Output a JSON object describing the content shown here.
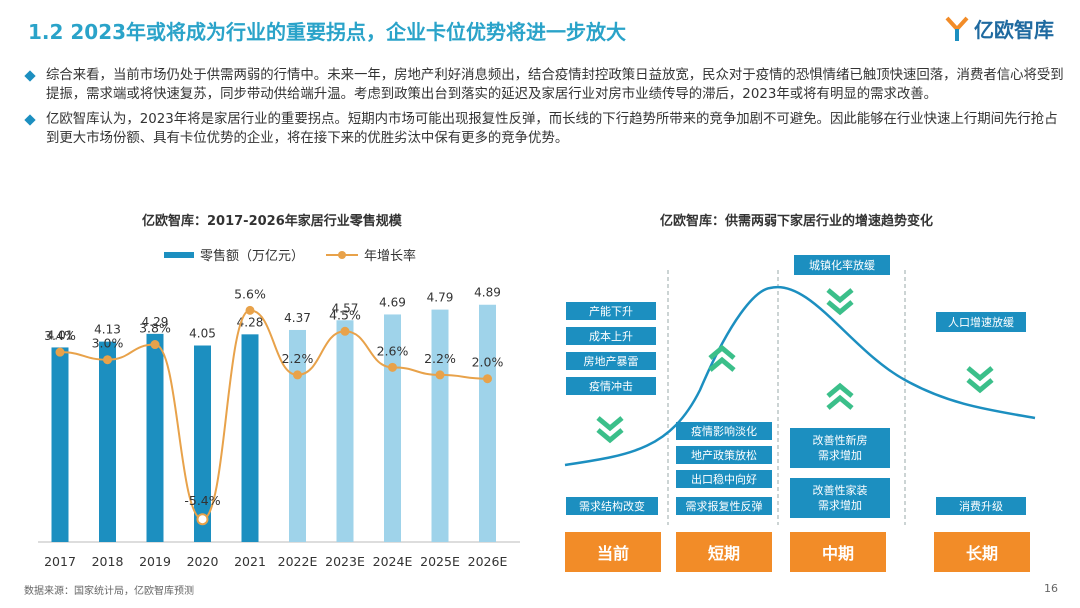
{
  "header": {
    "title": "1.2 2023年或将成为行业的重要拐点，企业卡位优势将进一步放大",
    "logo_text": "亿欧智库"
  },
  "bullets": [
    "综合来看，当前市场仍处于供需两弱的行情中。未来一年，房地产利好消息频出，结合疫情封控政策日益放宽，民众对于疫情的恐惧情绪已触顶快速回落，消费者信心将受到提振，需求端或将快速复苏，同步带动供给端升温。考虑到政策出台到落实的延迟及家居行业对房市业绩传导的滞后，2023年或将有明显的需求改善。",
    "亿欧智库认为，2023年将是家居行业的重要拐点。短期内市场可能出现报复性反弹，而长线的下行趋势所带来的竞争加剧不可避免。因此能够在行业快速上行期间先行抢占到更大市场份额、具有卡位优势的企业，将在接下来的优胜劣汰中保有更多的竞争优势。"
  ],
  "chart_data": {
    "type": "bar",
    "title": "亿欧智库：2017-2026年家居行业零售规模",
    "categories": [
      "2017",
      "2018",
      "2019",
      "2020",
      "2021",
      "2022E",
      "2023E",
      "2024E",
      "2025E",
      "2026E"
    ],
    "series": [
      {
        "name": "零售额（万亿元）",
        "type": "bar",
        "values": [
          4.01,
          4.13,
          4.29,
          4.05,
          4.28,
          4.37,
          4.57,
          4.69,
          4.79,
          4.89
        ],
        "labels": [
          "4.01",
          "4.13",
          "4.29",
          "4.05",
          "4.28",
          "4.37",
          "4.57",
          "4.69",
          "4.79",
          "4.89"
        ]
      },
      {
        "name": "年增长率",
        "type": "line",
        "values": [
          3.4,
          3.0,
          3.8,
          -5.4,
          5.6,
          2.2,
          4.5,
          2.6,
          2.2,
          2.0
        ],
        "labels": [
          "3.4%",
          "3.0%",
          "3.8%",
          "-5.4%",
          "5.6%",
          "2.2%",
          "4.5%",
          "2.6%",
          "2.2%",
          "2.0%"
        ]
      }
    ],
    "bar_ylim": [
      0,
      5.4
    ],
    "line_ylim": [
      -6.6,
      7.2
    ],
    "colors": {
      "bar_actual": "#1c8fc0",
      "bar_estimate": "#9fd3ea",
      "line": "#e8a24a"
    }
  },
  "diagram": {
    "title": "亿欧智库：供需两弱下家居行业的增速趋势变化",
    "short_term_factors": [
      "产能下升",
      "成本上升",
      "房地产暴雷",
      "疫情冲击"
    ],
    "short_term_bottom": "需求结构改变",
    "midterm_up": [
      "疫情影响淡化",
      "地产政策放松",
      "出口稳中向好"
    ],
    "midterm_bottom": "需求报复性反弹",
    "top_label": "城镇化率放缓",
    "mid_boxes": [
      "改善性新房\n需求增加",
      "改善性家装\n需求增加"
    ],
    "right_box": "人口增速放缓",
    "right_bottom": "消费升级",
    "phases": [
      "当前",
      "短期",
      "中期",
      "长期"
    ]
  },
  "footer": {
    "source": "数据来源：国家统计局，亿欧智库预测",
    "page": "16"
  }
}
